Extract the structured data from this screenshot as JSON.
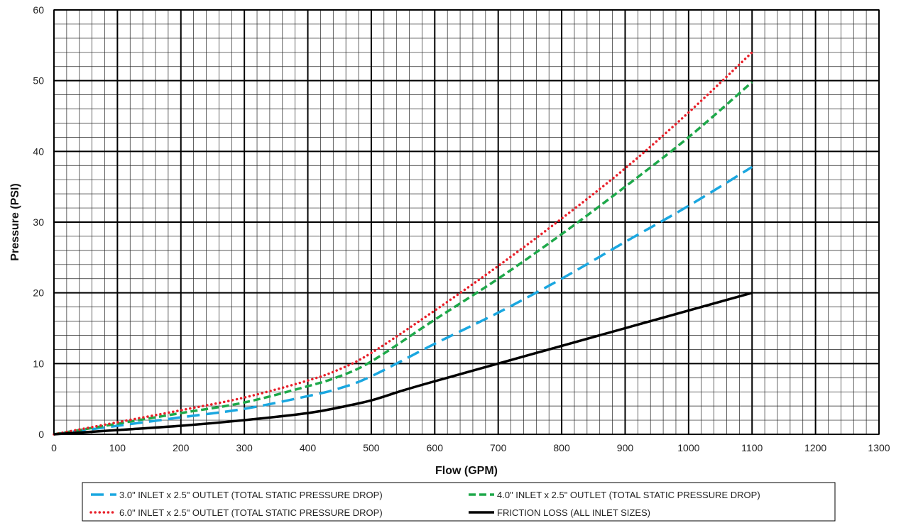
{
  "chart_data": {
    "type": "line",
    "title": "",
    "xlabel": "Flow (GPM)",
    "ylabel": "Pressure (PSI)",
    "xlim": [
      0,
      1300
    ],
    "ylim": [
      0,
      60
    ],
    "x_ticks": [
      0,
      100,
      200,
      300,
      400,
      500,
      600,
      700,
      800,
      900,
      1000,
      1100,
      1200,
      1300
    ],
    "y_ticks": [
      0,
      10,
      20,
      30,
      40,
      50,
      60
    ],
    "grid": true,
    "minor_grid": {
      "x_step": 20,
      "y_step": 2
    },
    "legend_position": "bottom",
    "series": [
      {
        "name": "3.0\" INLET x 2.5\" OUTLET (TOTAL STATIC PRESSURE DROP)",
        "color": "#1aa7e0",
        "style": "long-dash",
        "x": [
          0,
          100,
          200,
          300,
          400,
          450,
          500,
          600,
          700,
          800,
          900,
          1000,
          1100
        ],
        "y": [
          0,
          1.2,
          2.4,
          3.6,
          5.4,
          6.5,
          8.2,
          12.8,
          17.2,
          22.0,
          27.2,
          32.3,
          37.8
        ]
      },
      {
        "name": "4.0\" INLET x 2.5\" OUTLET (TOTAL STATIC PRESSURE DROP)",
        "color": "#1ea84a",
        "style": "dash",
        "x": [
          0,
          100,
          200,
          300,
          400,
          450,
          500,
          600,
          700,
          800,
          900,
          1000,
          1100
        ],
        "y": [
          0,
          1.5,
          3.0,
          4.5,
          6.8,
          8.2,
          10.3,
          16.2,
          22.0,
          28.3,
          35.0,
          42.0,
          49.8
        ]
      },
      {
        "name": "6.0\" INLET x 2.5\" OUTLET (TOTAL STATIC PRESSURE DROP)",
        "color": "#e8202a",
        "style": "dotted",
        "x": [
          0,
          100,
          200,
          300,
          400,
          450,
          500,
          600,
          700,
          800,
          900,
          1000,
          1100
        ],
        "y": [
          0,
          1.7,
          3.4,
          5.2,
          7.6,
          9.2,
          11.5,
          17.5,
          23.8,
          30.5,
          37.6,
          45.5,
          54.0
        ]
      },
      {
        "name": "FRICTION LOSS (ALL INLET SIZES)",
        "color": "#000000",
        "style": "solid",
        "x": [
          0,
          100,
          200,
          300,
          400,
          450,
          500,
          550,
          600,
          700,
          800,
          900,
          1000,
          1100
        ],
        "y": [
          0,
          0.6,
          1.2,
          2.0,
          3.0,
          3.8,
          4.8,
          6.2,
          7.5,
          10.0,
          12.5,
          15.0,
          17.5,
          20.0
        ]
      }
    ]
  }
}
